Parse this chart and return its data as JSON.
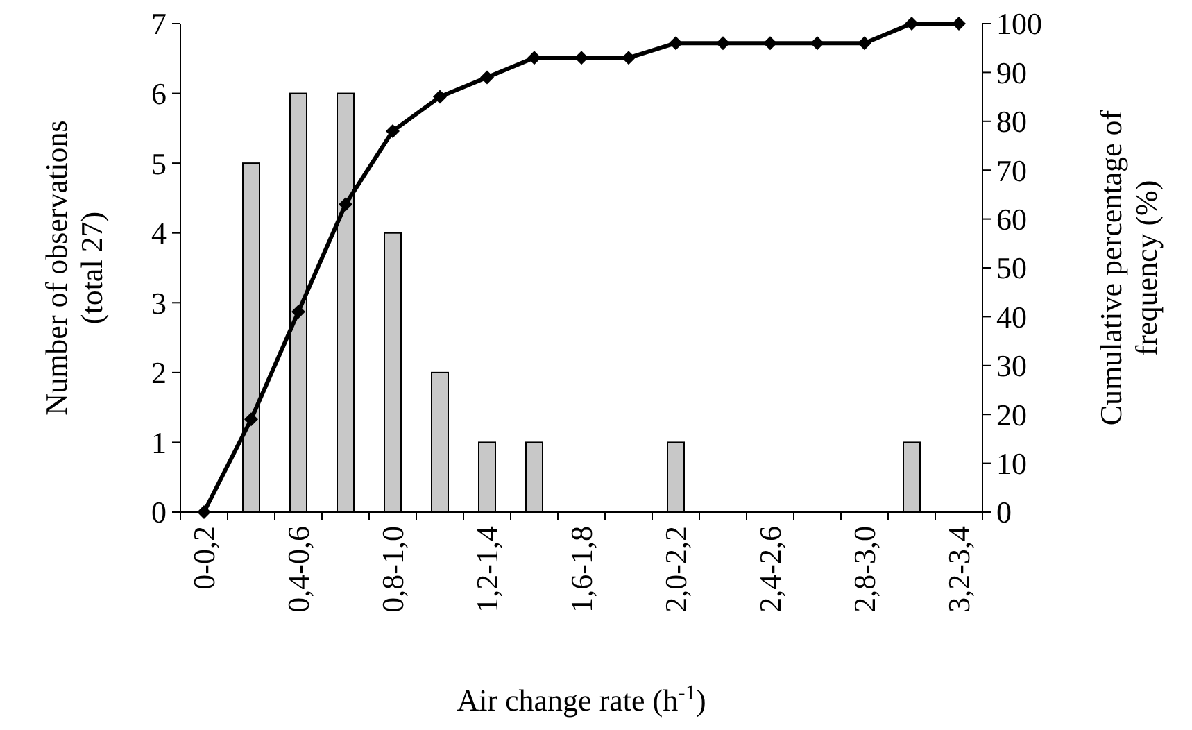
{
  "chart_data": {
    "type": "bar",
    "xlabel": "Air change rate (h$^{-1}$)",
    "ylabel": "Number of observations\n(total 27)",
    "y2label": "Cumulative percentage of\nfrequency (%)",
    "categories": [
      "0-0,2",
      null,
      "0,4-0,6",
      null,
      "0,8-1,0",
      null,
      "1,2-1,4",
      null,
      "1,6-1,8",
      null,
      "2,0-2,2",
      null,
      "2,4-2,6",
      null,
      "2,8-3,0",
      null,
      "3,2-3,4"
    ],
    "series": [
      {
        "color": "#c8c8c8",
        "values": [
          0,
          5,
          6,
          6,
          4,
          2,
          1,
          1,
          0,
          0,
          1,
          0,
          0,
          0,
          0,
          1,
          0
        ]
      },
      {
        "type": "line",
        "axis": "y2",
        "color": "#000000",
        "marker": "diamond",
        "line_style": "solid",
        "values": [
          0,
          19,
          41,
          63,
          78,
          85,
          89,
          93,
          93,
          93,
          96,
          96,
          96,
          96,
          96,
          100,
          100
        ]
      }
    ],
    "ylim": [
      0,
      7
    ],
    "yticks": [
      0,
      1,
      2,
      3,
      4,
      5,
      6,
      7
    ],
    "y2lim": [
      0,
      100
    ],
    "y2ticks": [
      0,
      10,
      20,
      30,
      40,
      50,
      60,
      70,
      80,
      90,
      100
    ],
    "grid": false
  }
}
